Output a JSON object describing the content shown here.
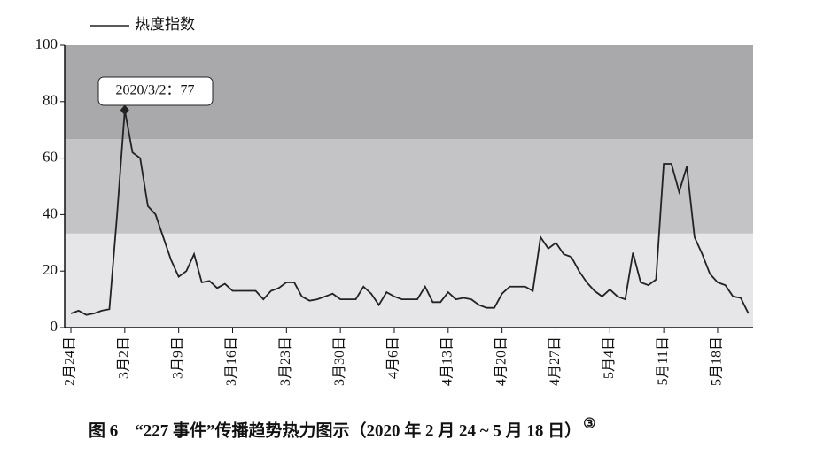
{
  "chart_data": {
    "type": "line",
    "legend": "热度指数",
    "caption": "图 6　“227 事件”传播趋势热力图示（2020 年 2 月 24 ~ 5 月 18 日）",
    "caption_note": "③",
    "annotation": {
      "text": "2020/3/2：77",
      "index": 7
    },
    "categories": [
      "2月24日",
      null,
      null,
      null,
      null,
      null,
      null,
      "3月2日",
      null,
      null,
      null,
      null,
      null,
      null,
      "3月9日",
      null,
      null,
      null,
      null,
      null,
      null,
      "3月16日",
      null,
      null,
      null,
      null,
      null,
      null,
      "3月23日",
      null,
      null,
      null,
      null,
      null,
      null,
      "3月30日",
      null,
      null,
      null,
      null,
      null,
      null,
      "4月6日",
      null,
      null,
      null,
      null,
      null,
      null,
      "4月13日",
      null,
      null,
      null,
      null,
      null,
      null,
      "4月20日",
      null,
      null,
      null,
      null,
      null,
      null,
      "4月27日",
      null,
      null,
      null,
      null,
      null,
      null,
      "5月4日",
      null,
      null,
      null,
      null,
      null,
      null,
      "5月11日",
      null,
      null,
      null,
      null,
      null,
      null,
      "5月18日",
      null,
      null,
      null,
      null
    ],
    "series": [
      {
        "name": "热度指数",
        "color": "#222222",
        "values": [
          5,
          6,
          4.5,
          5,
          6,
          6.5,
          40,
          77,
          62,
          60,
          43,
          40,
          32,
          24,
          18,
          20,
          26,
          16,
          16.5,
          14,
          15.5,
          13,
          13,
          13,
          13,
          10,
          13,
          14,
          16,
          16,
          11,
          9.5,
          10,
          11,
          12,
          10,
          10,
          10,
          14.5,
          12,
          8,
          12.5,
          11,
          10,
          10,
          10,
          14.5,
          9,
          9,
          12.5,
          10,
          10.5,
          10,
          8,
          7,
          7,
          12,
          14.5,
          14.5,
          14.5,
          13,
          32,
          28,
          30,
          26,
          25,
          20,
          16,
          13,
          11,
          13.5,
          11,
          10,
          26.5,
          16,
          15,
          17,
          58,
          58,
          48,
          57,
          32,
          26,
          19,
          16,
          15,
          11,
          10.5,
          5
        ]
      }
    ],
    "bands": [
      {
        "from": 0,
        "to": 33.3,
        "color": "#e6e6e8"
      },
      {
        "from": 33.3,
        "to": 66.7,
        "color": "#c4c4c6"
      },
      {
        "from": 66.7,
        "to": 100,
        "color": "#a9a9ab"
      }
    ],
    "ylim": [
      0,
      100
    ],
    "yticks": [
      0,
      20,
      40,
      60,
      80,
      100
    ]
  }
}
